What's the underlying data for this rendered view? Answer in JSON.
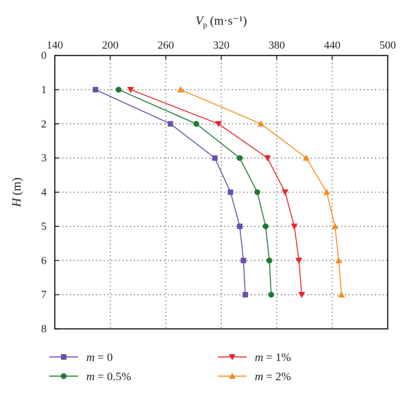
{
  "chart_data": {
    "type": "line",
    "orientation": "depth-profile",
    "xaxis": {
      "label_symbol": "V",
      "label_sub": "p",
      "label_unit": "(m·s⁻¹)",
      "position": "top",
      "range": [
        140,
        500
      ],
      "ticks": [
        "140",
        "200",
        "260",
        "320",
        "380",
        "440",
        "500"
      ]
    },
    "yaxis": {
      "label_symbol": "H",
      "label_unit": "(m)",
      "range": [
        0,
        8
      ],
      "inverted": true,
      "ticks": [
        "0",
        "1",
        "2",
        "3",
        "4",
        "5",
        "6",
        "7",
        "8"
      ]
    },
    "grid": "dotted",
    "legend": {
      "placement": "bottom",
      "columns": 2
    },
    "depths": [
      1,
      2,
      3,
      4,
      5,
      6,
      7
    ],
    "series": [
      {
        "name_var": "m",
        "name_value": "= 0",
        "color": "#6a4fa8",
        "marker": "square",
        "values": [
          184,
          265,
          313,
          330,
          340,
          344,
          346
        ]
      },
      {
        "name_var": "m",
        "name_value": "= 0.5%",
        "color": "#1e7a34",
        "marker": "circle",
        "values": [
          209,
          293,
          340,
          359,
          368,
          372,
          374
        ]
      },
      {
        "name_var": "m",
        "name_value": "= 1%",
        "color": "#e8262c",
        "marker": "triangle-down",
        "values": [
          222,
          317,
          370,
          389,
          399,
          404,
          407
        ]
      },
      {
        "name_var": "m",
        "name_value": "= 2%",
        "color": "#f58c20",
        "marker": "triangle-up",
        "values": [
          276,
          363,
          412,
          434,
          443,
          447,
          450
        ]
      }
    ]
  }
}
